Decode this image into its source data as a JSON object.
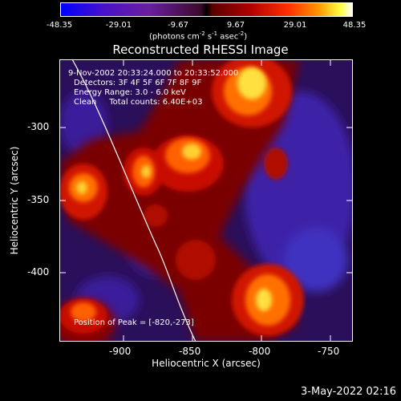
{
  "colorbar": {
    "ticks": [
      "-48.35",
      "-29.01",
      "-9.67",
      "9.67",
      "29.01",
      "48.35"
    ],
    "units_prefix": "(photons cm",
    "units_exp1": "-2",
    "units_mid1": " s",
    "units_exp2": "-1",
    "units_mid2": " asec",
    "units_exp3": "-2",
    "units_suffix": ")"
  },
  "plot": {
    "title": "Reconstructed RHESSI Image",
    "xlabel": "Heliocentric X (arcsec)",
    "ylabel": "Heliocentric Y (arcsec)",
    "xticks": [
      "-900",
      "-850",
      "-800",
      "-750"
    ],
    "yticks": [
      "-300",
      "-350",
      "-400"
    ],
    "overlay": {
      "time_range": "9-Nov-2002 20:33:24.000 to 20:33:52.000",
      "detectors": "Detectors: 3F 4F 5F 6F 7F 8F 9F",
      "energy": "Energy Range: 3.0 - 6.0 keV",
      "clean": "Clean     Total counts: 6.40E+03",
      "peak": "Position of Peak = [-820,-273]"
    }
  },
  "footer": {
    "timestamp": "3-May-2022 02:16"
  },
  "colors": {
    "background": "#000000",
    "text": "#ffffff"
  }
}
